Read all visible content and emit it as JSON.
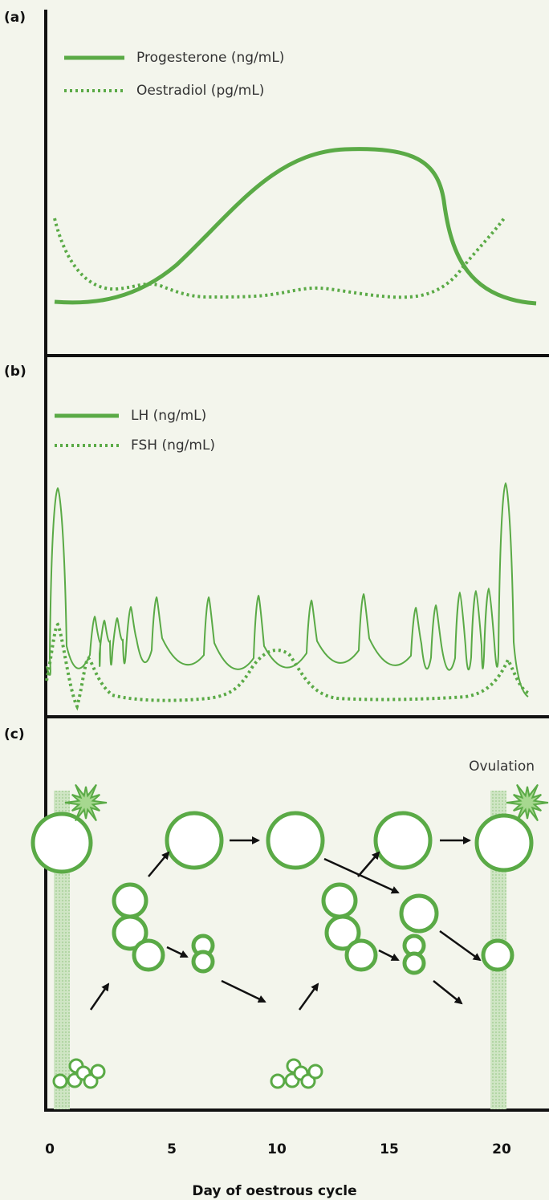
{
  "panels": [
    {
      "label": "(a)",
      "legend": [
        "Progesterone (ng/mL)",
        "Oestradiol (pg/mL)"
      ]
    },
    {
      "label": "(b)",
      "legend": [
        "LH (ng/mL)",
        "FSH (ng/mL)"
      ]
    },
    {
      "label": "(c)",
      "annotation": "Ovulation"
    }
  ],
  "x_axis": {
    "ticks": [
      "0",
      "5",
      "10",
      "15",
      "20"
    ],
    "title": "Day of oestrous cycle"
  }
}
